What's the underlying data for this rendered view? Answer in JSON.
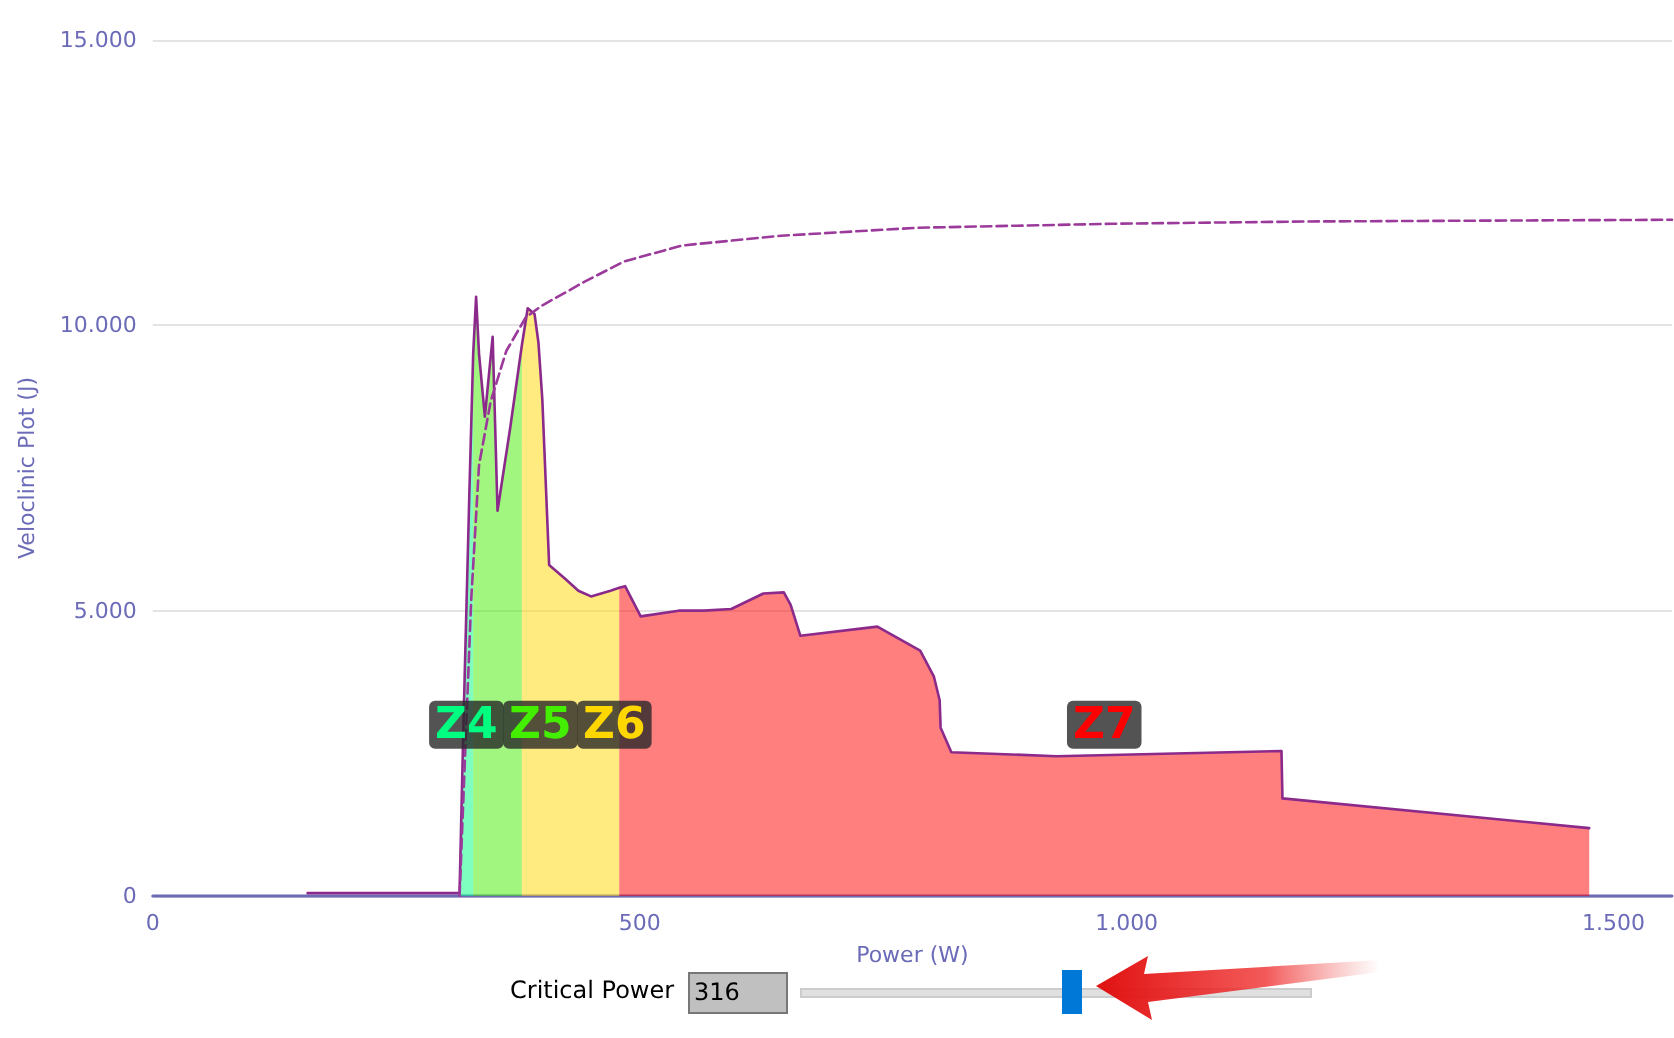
{
  "chart_data": {
    "type": "area",
    "xlabel": "Power (W)",
    "ylabel": "Veloclinic Plot (J)",
    "xlim": [
      0,
      1560
    ],
    "ylim": [
      0,
      15000
    ],
    "xticks": [
      0,
      500,
      {
        "value": 1000,
        "label": "1.000"
      },
      {
        "value": 1500,
        "label": "1.500"
      }
    ],
    "yticks": [
      0,
      {
        "value": 5000,
        "label": "5.000"
      },
      {
        "value": 10000,
        "label": "10.000"
      },
      {
        "value": 15000,
        "label": "15.000"
      }
    ],
    "grid": "y",
    "marker": "none",
    "annotations": [
      "Critical Power",
      "316"
    ],
    "series": [
      {
        "type": "area",
        "name": "Z4",
        "color": "#00ff80",
        "x": [
          315,
          319,
          325,
          329
        ],
        "values": [
          50,
          3000,
          7000,
          9500
        ]
      },
      {
        "type": "area",
        "name": "Z5",
        "color": "#44ee00",
        "x": [
          329,
          332,
          335,
          341,
          349,
          354,
          367,
          379
        ],
        "values": [
          9500,
          10500,
          9500,
          8400,
          9800,
          6750,
          8200,
          9650
        ]
      },
      {
        "type": "area",
        "name": "Z6",
        "color": "#ffd700",
        "x": [
          379,
          385,
          392,
          396,
          400,
          407,
          424,
          437,
          450,
          470,
          479
        ],
        "values": [
          9650,
          10300,
          10200,
          9700,
          8700,
          5800,
          5550,
          5350,
          5250,
          5350,
          5400
        ]
      },
      {
        "type": "area",
        "name": "Z7",
        "color": "#ff0000",
        "x": [
          479,
          485,
          501,
          540,
          566,
          594,
          627,
          648,
          655,
          665,
          744,
          788,
          802,
          808,
          809,
          820,
          928,
          1159,
          1160,
          1475
        ],
        "values": [
          5400,
          5430,
          4900,
          5000,
          5000,
          5030,
          5300,
          5320,
          5100,
          4560,
          4720,
          4300,
          3850,
          3430,
          2950,
          2520,
          2450,
          2540,
          1710,
          1190
        ]
      },
      {
        "type": "line",
        "color": "#8b2a8b",
        "x": [
          159,
          250,
          315,
          319,
          325,
          329,
          332,
          335,
          341,
          349,
          354,
          367,
          379,
          385,
          392,
          396,
          400,
          407,
          424,
          437,
          450,
          470,
          479,
          485,
          501,
          540,
          566,
          594,
          627,
          648,
          655,
          665,
          744,
          788,
          802,
          808,
          809,
          820,
          928,
          1159,
          1160,
          1475
        ],
        "values": [
          50,
          50,
          50,
          3000,
          7000,
          9500,
          10500,
          9500,
          8400,
          9800,
          6750,
          8200,
          9650,
          10300,
          10200,
          9700,
          8700,
          5800,
          5550,
          5350,
          5250,
          5350,
          5400,
          5430,
          4900,
          5000,
          5000,
          5030,
          5300,
          5320,
          5100,
          4560,
          4720,
          4300,
          3850,
          3430,
          2950,
          2520,
          2450,
          2540,
          1710,
          1190
        ]
      },
      {
        "type": "line",
        "line_style": "dashed",
        "color": "#9b3a9b",
        "x": [
          315,
          327,
          335,
          347,
          363,
          383,
          400,
          444,
          484,
          544,
          645,
          785,
          986,
          1187,
          1560
        ],
        "values": [
          0,
          5200,
          7550,
          8670,
          9550,
          10140,
          10350,
          10770,
          11120,
          11400,
          11570,
          11710,
          11780,
          11820,
          11850
        ]
      }
    ]
  }
}
